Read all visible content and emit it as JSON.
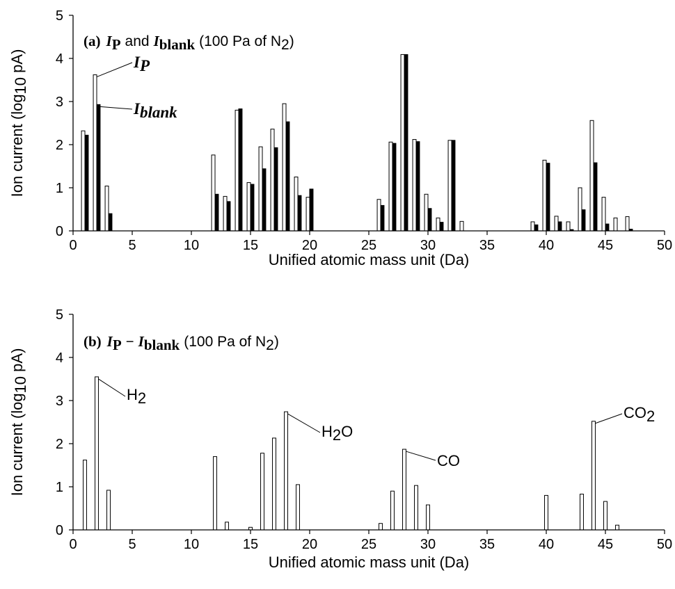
{
  "chart_data": [
    {
      "type": "bar",
      "title_parts": {
        "label": "(a)",
        "sym1_main": "I",
        "sym1_sub": "P",
        "connector": "and",
        "sym2_main": "I",
        "sym2_sub": "blank",
        "cond_prefix": "(100 Pa of N",
        "cond_sub": "2",
        "cond_suffix": ")"
      },
      "xlabel": "Unified atomic mass unit (Da)",
      "ylabel_parts": {
        "main": "Ion current (log",
        "sub": "10",
        "suffix": " pA)"
      },
      "xlim": [
        0,
        50
      ],
      "ylim": [
        0,
        5
      ],
      "xticks": [
        "0",
        "5",
        "10",
        "15",
        "20",
        "25",
        "30",
        "35",
        "40",
        "45",
        "50"
      ],
      "yticks": [
        "0",
        "1",
        "2",
        "3",
        "4",
        "5"
      ],
      "grid": false,
      "series": [
        {
          "fill": "#ffffff",
          "x": [
            1,
            2,
            3,
            12,
            13,
            14,
            15,
            16,
            17,
            18,
            19,
            20,
            26,
            27,
            28,
            29,
            30,
            31,
            32,
            33,
            39,
            40,
            41,
            42,
            43,
            44,
            45,
            46,
            47
          ],
          "values": [
            2.32,
            3.62,
            1.04,
            1.76,
            0.8,
            2.8,
            1.12,
            1.95,
            2.36,
            2.95,
            1.25,
            0.78,
            0.73,
            2.06,
            4.09,
            2.12,
            0.85,
            0.3,
            2.1,
            0.22,
            0.21,
            1.64,
            0.34,
            0.21,
            1.0,
            2.56,
            0.78,
            0.3,
            0.33
          ]
        },
        {
          "fill": "#000000",
          "x": [
            1,
            2,
            3,
            12,
            13,
            14,
            15,
            16,
            17,
            18,
            19,
            20,
            26,
            27,
            28,
            29,
            30,
            31,
            32,
            39,
            40,
            41,
            42,
            43,
            44,
            45,
            47
          ],
          "values": [
            2.22,
            2.93,
            0.4,
            0.85,
            0.68,
            2.83,
            1.08,
            1.44,
            1.93,
            2.53,
            0.82,
            0.97,
            0.59,
            2.03,
            4.09,
            2.07,
            0.52,
            0.2,
            2.1,
            0.14,
            1.57,
            0.21,
            0.03,
            0.49,
            1.58,
            0.16,
            0.04
          ]
        }
      ],
      "annotations": [
        {
          "main": "I",
          "sub": "P",
          "at_x": 2,
          "at_value": 3.62
        },
        {
          "main": "I",
          "sub": "blank",
          "at_x": 2,
          "at_value": 2.93
        }
      ]
    },
    {
      "type": "bar",
      "title_parts": {
        "label": "(b)",
        "sym1_main": "I",
        "sym1_sub": "P",
        "connector": "−",
        "sym2_main": "I",
        "sym2_sub": "blank",
        "cond_prefix": "(100 Pa of N",
        "cond_sub": "2",
        "cond_suffix": ")"
      },
      "xlabel": "Unified atomic mass unit (Da)",
      "ylabel_parts": {
        "main": "Ion current (log",
        "sub": "10",
        "suffix": " pA)"
      },
      "xlim": [
        0,
        50
      ],
      "ylim": [
        0,
        5
      ],
      "xticks": [
        "0",
        "5",
        "10",
        "15",
        "20",
        "25",
        "30",
        "35",
        "40",
        "45",
        "50"
      ],
      "yticks": [
        "0",
        "1",
        "2",
        "3",
        "4",
        "5"
      ],
      "grid": false,
      "series": [
        {
          "fill": "#ffffff",
          "x": [
            1,
            2,
            3,
            12,
            13,
            15,
            16,
            17,
            18,
            19,
            26,
            27,
            28,
            29,
            30,
            40,
            43,
            44,
            45,
            46
          ],
          "values": [
            1.62,
            3.55,
            0.92,
            1.7,
            0.18,
            0.06,
            1.78,
            2.13,
            2.74,
            1.05,
            0.15,
            0.9,
            1.87,
            1.03,
            0.58,
            0.8,
            0.83,
            2.52,
            0.66,
            0.11
          ]
        }
      ],
      "annotations": [
        {
          "main": "H",
          "sub": "2",
          "suffix": "",
          "at_x": 2,
          "at_value": 3.55
        },
        {
          "main": "H",
          "sub": "2",
          "suffix": "O",
          "at_x": 18,
          "at_value": 2.74
        },
        {
          "main": "CO",
          "sub": "",
          "suffix": "",
          "at_x": 28,
          "at_value": 1.87
        },
        {
          "main": "CO",
          "sub": "2",
          "suffix": "",
          "at_x": 44,
          "at_value": 2.52
        }
      ]
    }
  ]
}
